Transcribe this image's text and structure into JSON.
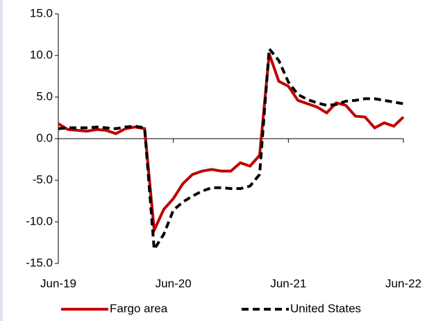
{
  "chart_data": {
    "type": "line",
    "categories": [
      "Jun-19",
      null,
      null,
      null,
      null,
      null,
      null,
      null,
      null,
      null,
      null,
      null,
      "Jun-20",
      null,
      null,
      null,
      null,
      null,
      null,
      null,
      null,
      null,
      null,
      null,
      "Jun-21",
      null,
      null,
      null,
      null,
      null,
      null,
      null,
      null,
      null,
      null,
      null,
      "Jun-22"
    ],
    "series": [
      {
        "name": "Fargo area",
        "color": "#c00000",
        "dash": "solid",
        "values": [
          1.8,
          1.1,
          1.0,
          0.9,
          1.1,
          1.0,
          0.6,
          1.2,
          1.4,
          1.2,
          -11.0,
          -8.5,
          -7.2,
          -5.4,
          -4.3,
          -3.9,
          -3.7,
          -3.9,
          -3.9,
          -2.9,
          -3.3,
          -2.0,
          10.2,
          6.9,
          6.3,
          4.6,
          4.2,
          3.8,
          3.1,
          4.3,
          4.0,
          2.7,
          2.6,
          1.3,
          1.9,
          1.5,
          2.6
        ]
      },
      {
        "name": "United States",
        "color": "#000000",
        "dash": "dashed",
        "values": [
          1.2,
          1.3,
          1.3,
          1.3,
          1.4,
          1.3,
          1.2,
          1.4,
          1.5,
          1.3,
          -13.3,
          -11.5,
          -8.6,
          -7.6,
          -6.9,
          -6.3,
          -5.9,
          -5.9,
          -6.0,
          -6.0,
          -5.7,
          -4.3,
          10.8,
          9.4,
          6.8,
          5.3,
          4.7,
          4.3,
          4.0,
          4.1,
          4.5,
          4.6,
          4.8,
          4.8,
          4.6,
          4.4,
          4.2
        ]
      }
    ],
    "ylim": [
      -15,
      15
    ],
    "yticks": [
      {
        "value": -15,
        "label": "-15.0"
      },
      {
        "value": -10,
        "label": "-10.0"
      },
      {
        "value": -5,
        "label": "-5.0"
      },
      {
        "value": 0,
        "label": "0.0"
      },
      {
        "value": 5,
        "label": "5.0"
      },
      {
        "value": 10,
        "label": "10.0"
      },
      {
        "value": 15,
        "label": "15.0"
      }
    ],
    "grid": false,
    "legend": "bottom"
  }
}
